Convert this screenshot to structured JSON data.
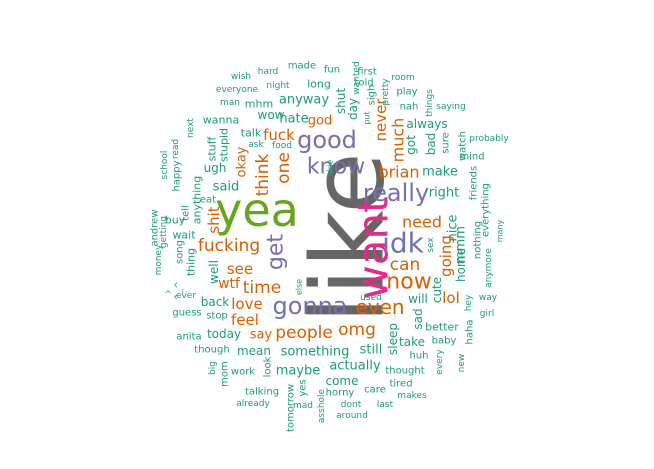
{
  "palette": {
    "green": "#1B9E77",
    "orange": "#D95F02",
    "purple": "#7570B3",
    "magenta": "#E7298A",
    "lime": "#66A61E",
    "gray": "#666666"
  },
  "words": [
    {
      "text": "like",
      "color": "gray"
    },
    {
      "text": "yea",
      "color": "lime"
    },
    {
      "text": "want",
      "color": "magenta"
    },
    {
      "text": "good",
      "color": "purple"
    },
    {
      "text": "know",
      "color": "purple"
    },
    {
      "text": "really",
      "color": "purple"
    },
    {
      "text": "idk",
      "color": "purple"
    },
    {
      "text": "gonna",
      "color": "purple"
    },
    {
      "text": "get",
      "color": "purple"
    },
    {
      "text": "now",
      "color": "orange"
    },
    {
      "text": "can",
      "color": "orange"
    },
    {
      "text": "even",
      "color": "orange"
    },
    {
      "text": "brian",
      "color": "orange"
    },
    {
      "text": "need",
      "color": "orange"
    },
    {
      "text": "think",
      "color": "orange"
    },
    {
      "text": "one",
      "color": "orange"
    },
    {
      "text": "fucking",
      "color": "orange"
    },
    {
      "text": "time",
      "color": "orange"
    },
    {
      "text": "people",
      "color": "orange"
    },
    {
      "text": "omg",
      "color": "orange"
    },
    {
      "text": "going",
      "color": "orange"
    },
    {
      "text": "much",
      "color": "orange"
    },
    {
      "text": "never",
      "color": "orange"
    },
    {
      "text": "fuck",
      "color": "orange"
    },
    {
      "text": "love",
      "color": "orange"
    },
    {
      "text": "feel",
      "color": "orange"
    },
    {
      "text": "see",
      "color": "orange"
    },
    {
      "text": "shit",
      "color": "orange"
    },
    {
      "text": "okay",
      "color": "orange"
    },
    {
      "text": "wtf",
      "color": "orange"
    },
    {
      "text": "say",
      "color": "orange"
    },
    {
      "text": "god",
      "color": "orange"
    },
    {
      "text": "lol",
      "color": "orange"
    },
    {
      "text": "said",
      "color": "green"
    },
    {
      "text": "anyway",
      "color": "green"
    },
    {
      "text": "hate",
      "color": "green"
    },
    {
      "text": "make",
      "color": "green"
    },
    {
      "text": "right",
      "color": "green"
    },
    {
      "text": "something",
      "color": "green"
    },
    {
      "text": "maybe",
      "color": "green"
    },
    {
      "text": "actually",
      "color": "green"
    },
    {
      "text": "still",
      "color": "green"
    },
    {
      "text": "sleep",
      "color": "green"
    },
    {
      "text": "mmm",
      "color": "green"
    },
    {
      "text": "nice",
      "color": "green"
    },
    {
      "text": "home",
      "color": "green"
    },
    {
      "text": "cute",
      "color": "green"
    },
    {
      "text": "sad",
      "color": "green"
    },
    {
      "text": "back",
      "color": "green"
    },
    {
      "text": "today",
      "color": "green"
    },
    {
      "text": "well",
      "color": "green"
    },
    {
      "text": "mean",
      "color": "green"
    },
    {
      "text": "take",
      "color": "green"
    },
    {
      "text": "come",
      "color": "green"
    },
    {
      "text": "bad",
      "color": "green"
    },
    {
      "text": "always",
      "color": "green"
    },
    {
      "text": "got",
      "color": "green"
    },
    {
      "text": "will",
      "color": "green"
    },
    {
      "text": "wow",
      "color": "green"
    },
    {
      "text": "ugh",
      "color": "green"
    },
    {
      "text": "better",
      "color": "green"
    },
    {
      "text": "day",
      "color": "green"
    },
    {
      "text": "shut",
      "color": "green"
    },
    {
      "text": "long",
      "color": "green"
    },
    {
      "text": "fun",
      "color": "green"
    },
    {
      "text": "made",
      "color": "green"
    },
    {
      "text": "wish",
      "color": "green"
    },
    {
      "text": "hard",
      "color": "green"
    },
    {
      "text": "night",
      "color": "green"
    },
    {
      "text": "everyone",
      "color": "green"
    },
    {
      "text": "man",
      "color": "green"
    },
    {
      "text": "mhm",
      "color": "green"
    },
    {
      "text": "wanna",
      "color": "green"
    },
    {
      "text": "stupid",
      "color": "green"
    },
    {
      "text": "stuff",
      "color": "green"
    },
    {
      "text": "talk",
      "color": "green"
    },
    {
      "text": "ask",
      "color": "green"
    },
    {
      "text": "food",
      "color": "green"
    },
    {
      "text": "anything",
      "color": "green"
    },
    {
      "text": "tell",
      "color": "green"
    },
    {
      "text": "eat",
      "color": "green"
    },
    {
      "text": "happy",
      "color": "green"
    },
    {
      "text": "read",
      "color": "green"
    },
    {
      "text": "next",
      "color": "green"
    },
    {
      "text": "school",
      "color": "green"
    },
    {
      "text": "andrew",
      "color": "green"
    },
    {
      "text": "getting",
      "color": "green"
    },
    {
      "text": "buy",
      "color": "green"
    },
    {
      "text": "wait",
      "color": "green"
    },
    {
      "text": "song",
      "color": "green"
    },
    {
      "text": "thing",
      "color": "green"
    },
    {
      "text": "money",
      "color": "green"
    },
    {
      "text": "^_^",
      "color": "green"
    },
    {
      "text": "^",
      "color": "green"
    },
    {
      "text": "ever",
      "color": "green"
    },
    {
      "text": "guess",
      "color": "green"
    },
    {
      "text": "stop",
      "color": "green"
    },
    {
      "text": "anita",
      "color": "green"
    },
    {
      "text": "though",
      "color": "green"
    },
    {
      "text": "big",
      "color": "green"
    },
    {
      "text": "mom",
      "color": "green"
    },
    {
      "text": "work",
      "color": "green"
    },
    {
      "text": "look",
      "color": "green"
    },
    {
      "text": "talking",
      "color": "green"
    },
    {
      "text": "already",
      "color": "green"
    },
    {
      "text": "tomorrow",
      "color": "green"
    },
    {
      "text": "yes",
      "color": "green"
    },
    {
      "text": "mad",
      "color": "green"
    },
    {
      "text": "asshole",
      "color": "green"
    },
    {
      "text": "horny",
      "color": "green"
    },
    {
      "text": "care",
      "color": "green"
    },
    {
      "text": "tired",
      "color": "green"
    },
    {
      "text": "makes",
      "color": "green"
    },
    {
      "text": "dont",
      "color": "green"
    },
    {
      "text": "last",
      "color": "green"
    },
    {
      "text": "around",
      "color": "green"
    },
    {
      "text": "thought",
      "color": "green"
    },
    {
      "text": "huh",
      "color": "green"
    },
    {
      "text": "baby",
      "color": "green"
    },
    {
      "text": "every",
      "color": "green"
    },
    {
      "text": "new",
      "color": "green"
    },
    {
      "text": "haha",
      "color": "green"
    },
    {
      "text": "hey",
      "color": "green"
    },
    {
      "text": "girl",
      "color": "green"
    },
    {
      "text": "way",
      "color": "green"
    },
    {
      "text": "anymore",
      "color": "green"
    },
    {
      "text": "many",
      "color": "green"
    },
    {
      "text": "everything",
      "color": "green"
    },
    {
      "text": "nothing",
      "color": "green"
    },
    {
      "text": "friends",
      "color": "green"
    },
    {
      "text": "mind",
      "color": "green"
    },
    {
      "text": "probably",
      "color": "green"
    },
    {
      "text": "watch",
      "color": "green"
    },
    {
      "text": "sure",
      "color": "green"
    },
    {
      "text": "saying",
      "color": "green"
    },
    {
      "text": "things",
      "color": "green"
    },
    {
      "text": "nah",
      "color": "green"
    },
    {
      "text": "play",
      "color": "green"
    },
    {
      "text": "room",
      "color": "green"
    },
    {
      "text": "pretty",
      "color": "green"
    },
    {
      "text": "sigh",
      "color": "green"
    },
    {
      "text": "put",
      "color": "green"
    },
    {
      "text": "told",
      "color": "green"
    },
    {
      "text": "first",
      "color": "green"
    },
    {
      "text": "wanted",
      "color": "green"
    },
    {
      "text": "okie",
      "color": "green"
    },
    {
      "text": "sex",
      "color": "green"
    },
    {
      "text": "used",
      "color": "green"
    },
    {
      "text": "else",
      "color": "green"
    }
  ]
}
